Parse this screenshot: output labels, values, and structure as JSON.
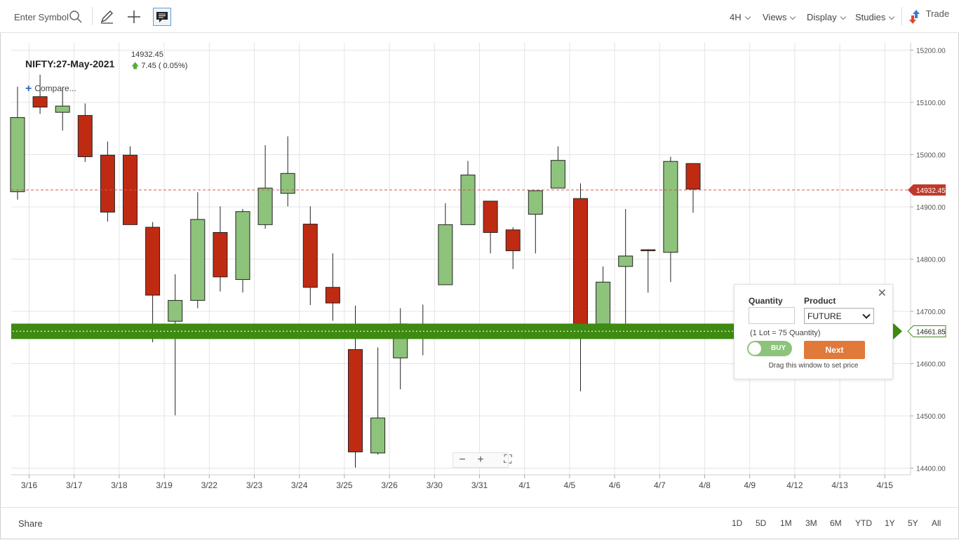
{
  "toolbar": {
    "symbol_placeholder": "Enter Symbol",
    "menus": [
      "4H",
      "Views",
      "Display",
      "Studies"
    ],
    "trade_label": "Trade"
  },
  "legend": {
    "name": "NIFTY:27-May-2021",
    "last_price": "14932.45",
    "change": "7.45 ( 0.05%)",
    "compare_label": "Compare..."
  },
  "chart_data": {
    "type": "candlestick",
    "ylim": [
      14380,
      15230
    ],
    "y_ticks": [
      14400,
      14500,
      14600,
      14700,
      14800,
      14900,
      15000,
      15100,
      15200
    ],
    "y_tick_labels": [
      "14400.00",
      "14500.00",
      "14600.00",
      "14700.00",
      "14800.00",
      "14900.00",
      "15000.00",
      "15100.00",
      "15200.00"
    ],
    "x_labels": [
      "3/16",
      "3/17",
      "3/18",
      "3/19",
      "3/22",
      "3/23",
      "3/24",
      "3/25",
      "3/26",
      "3/30",
      "3/31",
      "4/1",
      "4/5",
      "4/6",
      "4/7",
      "4/8",
      "4/9",
      "4/12",
      "4/13",
      "4/15"
    ],
    "candles": [
      {
        "o": 14929,
        "h": 15130,
        "l": 14914,
        "c": 15071
      },
      {
        "o": 15111,
        "h": 15153,
        "l": 15078,
        "c": 15091
      },
      {
        "o": 15081,
        "h": 15128,
        "l": 15046,
        "c": 15093
      },
      {
        "o": 15075,
        "h": 15098,
        "l": 14986,
        "c": 14996
      },
      {
        "o": 14999,
        "h": 15025,
        "l": 14872,
        "c": 14890
      },
      {
        "o": 14999,
        "h": 15016,
        "l": 14867,
        "c": 14866
      },
      {
        "o": 14861,
        "h": 14871,
        "l": 14641,
        "c": 14731
      },
      {
        "o": 14681,
        "h": 14771,
        "l": 14501,
        "c": 14721
      },
      {
        "o": 14721,
        "h": 14928,
        "l": 14706,
        "c": 14876
      },
      {
        "o": 14851,
        "h": 14901,
        "l": 14738,
        "c": 14766
      },
      {
        "o": 14761,
        "h": 14896,
        "l": 14736,
        "c": 14891
      },
      {
        "o": 14866,
        "h": 15018,
        "l": 14858,
        "c": 14936
      },
      {
        "o": 14926,
        "h": 15035,
        "l": 14901,
        "c": 14964
      },
      {
        "o": 14867,
        "h": 14901,
        "l": 14712,
        "c": 14746
      },
      {
        "o": 14746,
        "h": 14811,
        "l": 14682,
        "c": 14716
      },
      {
        "o": 14627,
        "h": 14711,
        "l": 14401,
        "c": 14431
      },
      {
        "o": 14429,
        "h": 14631,
        "l": 14426,
        "c": 14496
      },
      {
        "o": 14611,
        "h": 14706,
        "l": 14551,
        "c": 14676
      },
      {
        "o": 14666,
        "h": 14713,
        "l": 14616,
        "c": 14671
      },
      {
        "o": 14751,
        "h": 14907,
        "l": 14751,
        "c": 14866
      },
      {
        "o": 14866,
        "h": 14988,
        "l": 14866,
        "c": 14961
      },
      {
        "o": 14911,
        "h": 14911,
        "l": 14811,
        "c": 14851
      },
      {
        "o": 14856,
        "h": 14861,
        "l": 14781,
        "c": 14816
      },
      {
        "o": 14886,
        "h": 14931,
        "l": 14811,
        "c": 14931
      },
      {
        "o": 14936,
        "h": 15016,
        "l": 14936,
        "c": 14989
      },
      {
        "o": 14916,
        "h": 14945,
        "l": 14547,
        "c": 14676
      },
      {
        "o": 14676,
        "h": 14786,
        "l": 14676,
        "c": 14756
      },
      {
        "o": 14786,
        "h": 14896,
        "l": 14676,
        "c": 14806
      },
      {
        "o": 14818,
        "h": 14819,
        "l": 14736,
        "c": 14816
      },
      {
        "o": 14813,
        "h": 14996,
        "l": 14756,
        "c": 14987
      },
      {
        "o": 14983,
        "h": 14983,
        "l": 14889,
        "c": 14934
      }
    ],
    "last_price": 14932.45,
    "last_price_label": "14932.45",
    "order_line": 14661.85,
    "order_line_label": "14661.85",
    "colors": {
      "up": "#8dc37a",
      "down": "#bf2b12",
      "order_line": "#3e8a12",
      "last_line": "#d9534f",
      "grid": "#e4e4e4"
    }
  },
  "order": {
    "quantity_label": "Quantity",
    "product_label": "Product",
    "quantity_value": "",
    "product_value": "FUTURE",
    "lot_note": "(1 Lot = 75 Quantity)",
    "side": "BUY",
    "next_label": "Next",
    "drag_hint": "Drag this window to set price"
  },
  "bottom": {
    "share_label": "Share",
    "ranges": [
      "1D",
      "5D",
      "1M",
      "3M",
      "6M",
      "YTD",
      "1Y",
      "5Y",
      "All"
    ]
  }
}
